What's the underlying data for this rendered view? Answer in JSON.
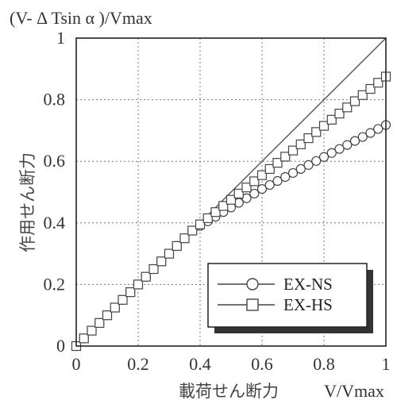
{
  "chart_data": {
    "type": "line",
    "title": "",
    "ylabel_top": "(V- Δ Tsin α )/Vmax",
    "ylabel": "作用せん断力",
    "xlabel_jp": "載荷せん断力",
    "xlabel": "V/Vmax",
    "xlim": [
      0,
      1
    ],
    "ylim": [
      0,
      1
    ],
    "x_ticks": [
      "0",
      "0.2",
      "0.4",
      "0.6",
      "0.8",
      "1"
    ],
    "y_ticks": [
      "0",
      "0.2",
      "0.4",
      "0.6",
      "0.8",
      "1"
    ],
    "grid": true,
    "legend_position": "bottom-right",
    "reference_line": {
      "x": [
        0,
        1
      ],
      "y": [
        0,
        1
      ]
    },
    "series": [
      {
        "name": "EX-NS",
        "marker": "circle",
        "x": [
          0,
          0.025,
          0.05,
          0.075,
          0.1,
          0.125,
          0.15,
          0.175,
          0.2,
          0.225,
          0.25,
          0.275,
          0.3,
          0.325,
          0.35,
          0.375,
          0.4,
          0.425,
          0.45,
          0.475,
          0.5,
          0.525,
          0.55,
          0.575,
          0.6,
          0.625,
          0.65,
          0.675,
          0.7,
          0.725,
          0.75,
          0.775,
          0.8,
          0.825,
          0.85,
          0.875,
          0.9,
          0.925,
          0.95,
          0.975,
          1.0
        ],
        "y": [
          0,
          0.025,
          0.05,
          0.075,
          0.1,
          0.125,
          0.15,
          0.175,
          0.2,
          0.225,
          0.25,
          0.275,
          0.3,
          0.325,
          0.35,
          0.375,
          0.39,
          0.405,
          0.42,
          0.435,
          0.45,
          0.465,
          0.48,
          0.495,
          0.51,
          0.523,
          0.536,
          0.549,
          0.562,
          0.575,
          0.588,
          0.601,
          0.614,
          0.627,
          0.64,
          0.653,
          0.666,
          0.679,
          0.692,
          0.705,
          0.718
        ]
      },
      {
        "name": "EX-HS",
        "marker": "square",
        "x": [
          0,
          0.025,
          0.05,
          0.075,
          0.1,
          0.125,
          0.15,
          0.175,
          0.2,
          0.225,
          0.25,
          0.275,
          0.3,
          0.325,
          0.35,
          0.375,
          0.4,
          0.425,
          0.45,
          0.475,
          0.5,
          0.525,
          0.55,
          0.575,
          0.6,
          0.625,
          0.65,
          0.675,
          0.7,
          0.725,
          0.75,
          0.775,
          0.8,
          0.825,
          0.85,
          0.875,
          0.9,
          0.925,
          0.95,
          0.975,
          1.0
        ],
        "y": [
          0,
          0.025,
          0.05,
          0.075,
          0.1,
          0.125,
          0.15,
          0.175,
          0.2,
          0.225,
          0.25,
          0.275,
          0.3,
          0.325,
          0.35,
          0.375,
          0.395,
          0.415,
          0.435,
          0.455,
          0.475,
          0.495,
          0.515,
          0.535,
          0.555,
          0.575,
          0.595,
          0.615,
          0.635,
          0.655,
          0.675,
          0.695,
          0.715,
          0.735,
          0.755,
          0.775,
          0.795,
          0.815,
          0.835,
          0.855,
          0.875
        ]
      }
    ]
  }
}
